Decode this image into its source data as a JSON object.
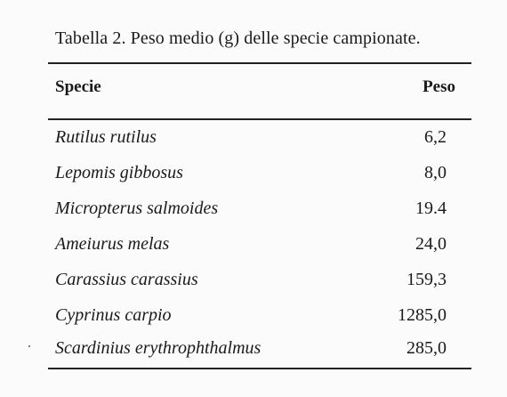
{
  "caption": "Tabella 2. Peso medio (g) delle specie campionate.",
  "table": {
    "headers": {
      "species": "Specie",
      "weight": "Peso"
    },
    "rows": [
      {
        "species": "Rutilus rutilus",
        "weight": "6,2"
      },
      {
        "species": "Lepomis gibbosus",
        "weight": "8,0"
      },
      {
        "species": "Micropterus salmoides",
        "weight": "19.4"
      },
      {
        "species": "Ameiurus melas",
        "weight": "24,0"
      },
      {
        "species": "Carassius carassius",
        "weight": "159,3"
      },
      {
        "species": "Cyprinus carpio",
        "weight": "1285,0"
      },
      {
        "species": "Scardinius erythrophthalmus",
        "weight": "285,0"
      }
    ]
  }
}
